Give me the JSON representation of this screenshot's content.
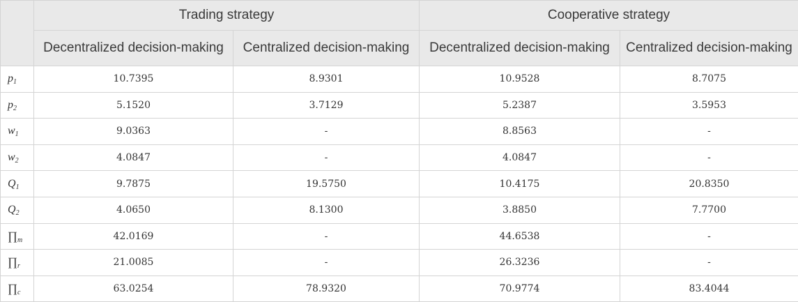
{
  "table": {
    "groups": [
      {
        "label": "Trading strategy"
      },
      {
        "label": "Cooperative strategy"
      }
    ],
    "subheaders": [
      "Decentralized decision-making",
      "Centralized decision-making",
      "Decentralized decision-making",
      "Centralized decision-making"
    ],
    "rows": [
      {
        "symbol": "p",
        "sub": "1",
        "values": [
          "10.7395",
          "8.9301",
          "10.9528",
          "8.7075"
        ]
      },
      {
        "symbol": "p",
        "sub": "2",
        "values": [
          "5.1520",
          "3.7129",
          "5.2387",
          "3.5953"
        ]
      },
      {
        "symbol": "w",
        "sub": "1",
        "values": [
          "9.0363",
          "-",
          "8.8563",
          "-"
        ]
      },
      {
        "symbol": "w",
        "sub": "2",
        "values": [
          "4.0847",
          "-",
          "4.0847",
          "-"
        ]
      },
      {
        "symbol": "Q",
        "sub": "1",
        "values": [
          "9.7875",
          "19.5750",
          "10.4175",
          "20.8350"
        ]
      },
      {
        "symbol": "Q",
        "sub": "2",
        "values": [
          "4.0650",
          "8.1300",
          "3.8850",
          "7.7700"
        ]
      },
      {
        "symbol": "∏",
        "sub": "m",
        "values": [
          "42.0169",
          "-",
          "44.6538",
          "-"
        ]
      },
      {
        "symbol": "∏",
        "sub": "r",
        "values": [
          "21.0085",
          "-",
          "26.3236",
          "-"
        ]
      },
      {
        "symbol": "∏",
        "sub": "c",
        "values": [
          "63.0254",
          "78.9320",
          "70.9774",
          "83.4044"
        ]
      }
    ]
  }
}
